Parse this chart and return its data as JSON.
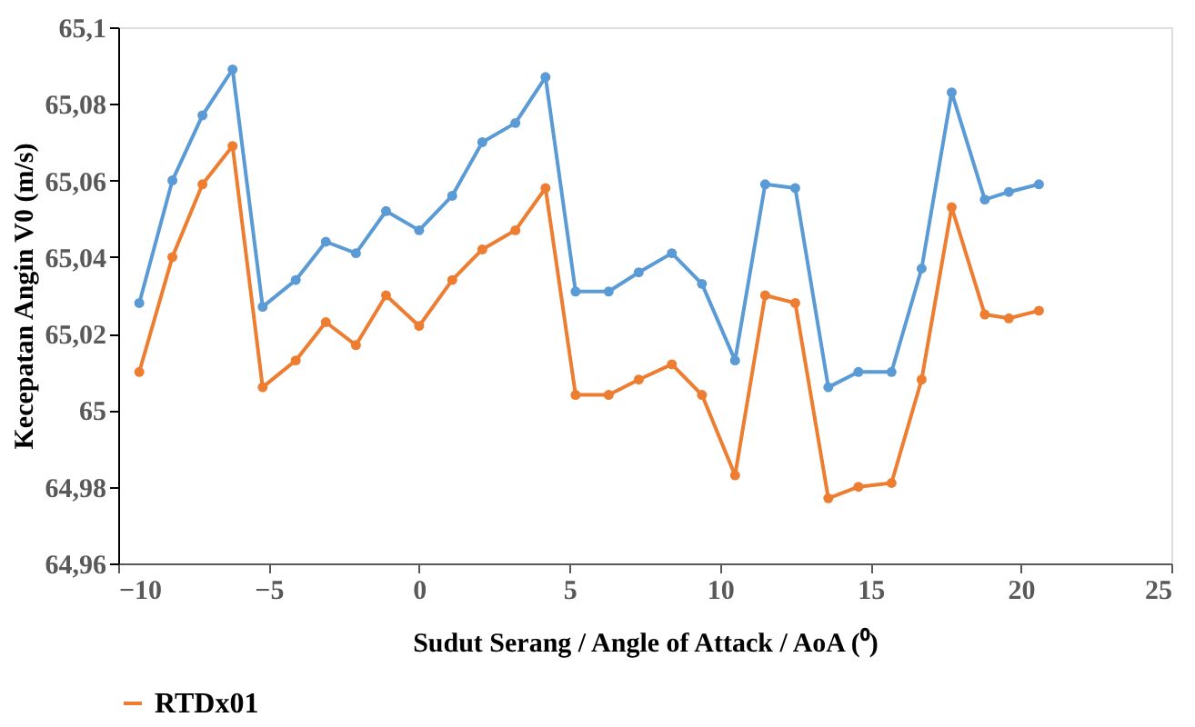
{
  "chart_data": {
    "type": "line",
    "xlabel": "Sudut Serang / Angle of Attack / AoA (⁰)",
    "ylabel": "Kecepatan Angin V0 (m/s)",
    "x": [
      -9.3,
      -8.2,
      -7.2,
      -6.2,
      -5.2,
      -4.1,
      -3.1,
      -2.1,
      -1.1,
      0,
      1.1,
      2.1,
      3.2,
      4.2,
      5.2,
      6.3,
      7.3,
      8.4,
      9.4,
      10.5,
      11.5,
      12.5,
      13.6,
      14.6,
      15.7,
      16.7,
      17.7,
      18.8,
      19.6,
      20.6
    ],
    "series": [
      {
        "color": "#5b9bd5",
        "values": [
          65.028,
          65.06,
          65.077,
          65.089,
          65.027,
          65.034,
          65.044,
          65.041,
          65.052,
          65.047,
          65.056,
          65.07,
          65.075,
          65.087,
          65.031,
          65.031,
          65.036,
          65.041,
          65.033,
          65.013,
          65.059,
          65.058,
          65.006,
          65.01,
          65.01,
          65.037,
          65.083,
          65.055,
          65.057,
          65.059
        ]
      },
      {
        "name": "RTDx01",
        "color": "#ed7d31",
        "values": [
          65.01,
          65.04,
          65.059,
          65.069,
          65.006,
          65.013,
          65.023,
          65.017,
          65.03,
          65.022,
          65.034,
          65.042,
          65.047,
          65.058,
          65.004,
          65.004,
          65.008,
          65.012,
          65.004,
          64.983,
          65.03,
          65.028,
          64.977,
          64.98,
          64.981,
          65.008,
          65.053,
          65.025,
          65.024,
          65.026
        ]
      }
    ],
    "xlim": [
      -10,
      25
    ],
    "xticks": [
      -10,
      -5,
      0,
      5,
      10,
      15,
      20,
      25
    ],
    "ylim": [
      64.96,
      65.1
    ],
    "yticks": [
      {
        "value": 64.96,
        "label": "64,96"
      },
      {
        "value": 64.98,
        "label": "64,98"
      },
      {
        "value": 65,
        "label": "65"
      },
      {
        "value": 65.02,
        "label": "65,02"
      },
      {
        "value": 65.04,
        "label": "65,04"
      },
      {
        "value": 65.06,
        "label": "65,06"
      },
      {
        "value": 65.08,
        "label": "65,08"
      },
      {
        "value": 65.1,
        "label": "65,1"
      }
    ],
    "grid": false,
    "legend": "bottom",
    "marker": "circle",
    "line_style": "solid"
  }
}
